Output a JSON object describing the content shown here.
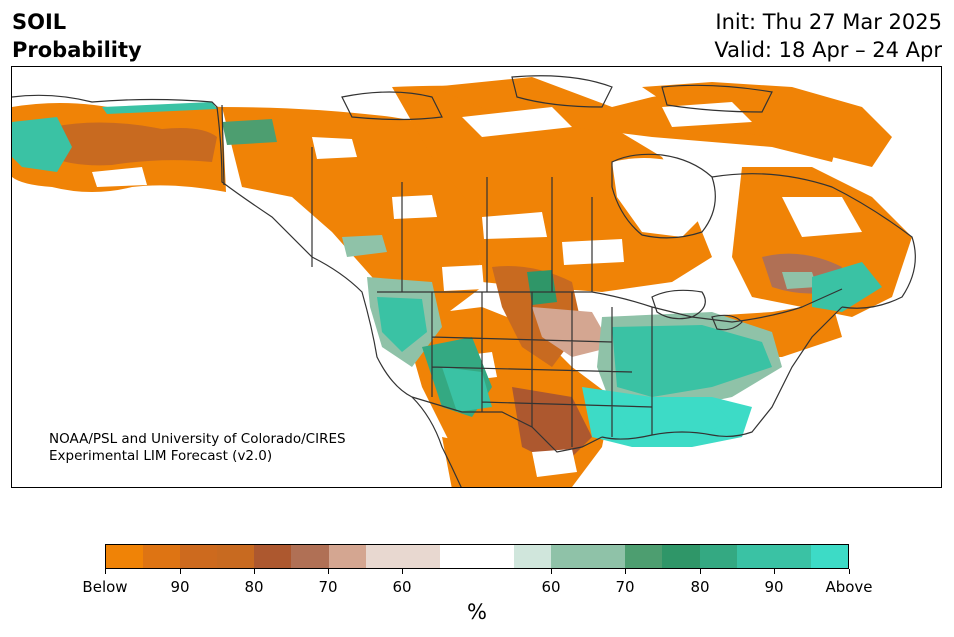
{
  "header": {
    "variable": "SOIL",
    "product": "Probability",
    "init": "Init: Thu 27 Mar 2025",
    "valid": "Valid: 18 Apr – 24 Apr"
  },
  "map": {
    "region": "North America",
    "credit_line1": "NOAA/PSL and University of Colorado/CIRES",
    "credit_line2": "Experimental LIM Forecast (v2.0)"
  },
  "colorbar": {
    "unit": "%",
    "segments": [
      {
        "color": "#f08306"
      },
      {
        "color": "#de7413"
      },
      {
        "color": "#cd6a1e"
      },
      {
        "color": "#c86a20"
      },
      {
        "color": "#ad582f"
      },
      {
        "color": "#b07055"
      },
      {
        "color": "#d4a691"
      },
      {
        "color": "#e8d8d0"
      },
      {
        "color": "#e8d8d0"
      },
      {
        "color": "#ffffff"
      },
      {
        "color": "#ffffff"
      },
      {
        "color": "#d0e6dc"
      },
      {
        "color": "#8fc2a8"
      },
      {
        "color": "#8fc2a8"
      },
      {
        "color": "#4d9e70"
      },
      {
        "color": "#2f9668"
      },
      {
        "color": "#34a982"
      },
      {
        "color": "#3ac2a4"
      },
      {
        "color": "#3ac2a4"
      },
      {
        "color": "#3ddbc6"
      }
    ],
    "ticks": [
      {
        "label": "Below"
      },
      {
        "label": "90"
      },
      {
        "label": "80"
      },
      {
        "label": "70"
      },
      {
        "label": "60"
      },
      {
        "label": "60"
      },
      {
        "label": "70"
      },
      {
        "label": "80"
      },
      {
        "label": "90"
      },
      {
        "label": "Above"
      }
    ]
  },
  "colors": {
    "below_strong": "#f08306",
    "below_mid": "#c86a20",
    "below_weak": "#d4a691",
    "neutral": "#ffffff",
    "above_weak": "#8fc2a8",
    "above_mid": "#2f9668",
    "above_strong": "#3ddbc6",
    "borders": "#333333"
  }
}
